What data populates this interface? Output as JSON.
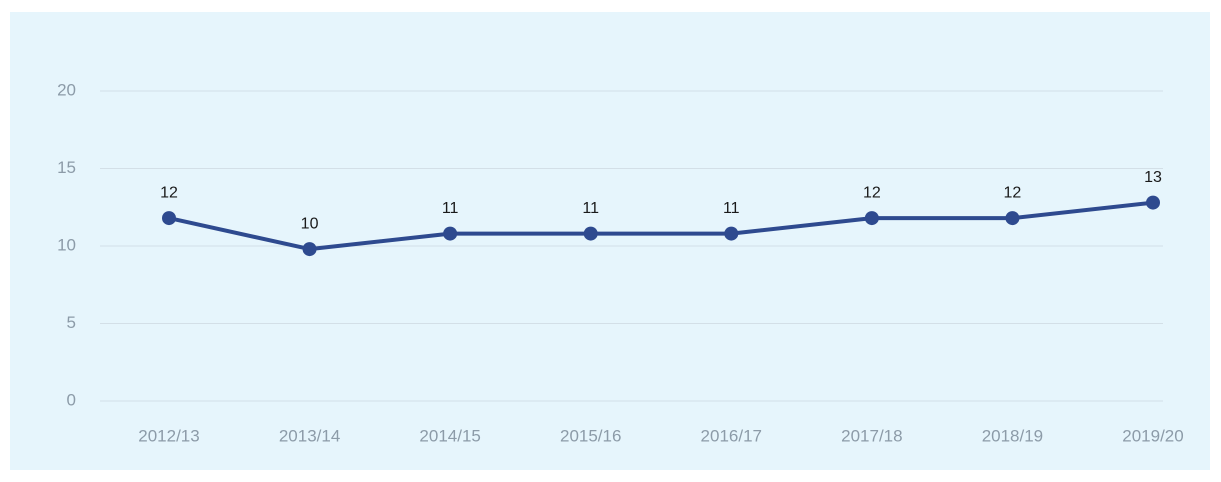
{
  "chart_data": {
    "type": "line",
    "categories": [
      "2012/13",
      "2013/14",
      "2014/15",
      "2015/16",
      "2016/17",
      "2017/18",
      "2018/19",
      "2019/20"
    ],
    "series": [
      {
        "color": "#2e4a8f",
        "values": [
          11.8,
          9.8,
          10.8,
          10.8,
          10.8,
          11.8,
          11.8,
          12.8
        ],
        "value_labels": [
          "12",
          "10",
          "11",
          "11",
          "11",
          "12",
          "12",
          "13"
        ]
      }
    ],
    "ylim": [
      0,
      20
    ],
    "yticks": [
      0,
      5,
      10,
      15,
      20
    ],
    "grid": true
  }
}
